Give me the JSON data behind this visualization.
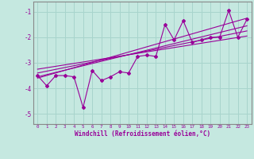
{
  "background_color": "#c5e8e0",
  "grid_color": "#a8d4cc",
  "line_color": "#990099",
  "xlabel": "Windchill (Refroidissement éolien,°C)",
  "xlim": [
    -0.5,
    23.5
  ],
  "ylim": [
    -5.4,
    -0.6
  ],
  "yticks": [
    -5,
    -4,
    -3,
    -2,
    -1
  ],
  "xticks": [
    0,
    1,
    2,
    3,
    4,
    5,
    6,
    7,
    8,
    9,
    10,
    11,
    12,
    13,
    14,
    15,
    16,
    17,
    18,
    19,
    20,
    21,
    22,
    23
  ],
  "main_series_x": [
    0,
    1,
    2,
    3,
    4,
    5,
    6,
    7,
    8,
    9,
    10,
    11,
    12,
    13,
    14,
    15,
    16,
    17,
    18,
    19,
    20,
    21,
    22,
    23
  ],
  "main_series_y": [
    -3.5,
    -3.9,
    -3.5,
    -3.5,
    -3.55,
    -4.75,
    -3.3,
    -3.7,
    -3.55,
    -3.35,
    -3.4,
    -2.75,
    -2.7,
    -2.75,
    -1.5,
    -2.1,
    -1.35,
    -2.2,
    -2.1,
    -2.0,
    -2.0,
    -0.95,
    -2.0,
    -1.3
  ],
  "regression_lines": [
    {
      "x": [
        0,
        23
      ],
      "y": [
        -3.55,
        -1.55
      ]
    },
    {
      "x": [
        0,
        23
      ],
      "y": [
        -3.4,
        -1.75
      ]
    },
    {
      "x": [
        0,
        23
      ],
      "y": [
        -3.25,
        -1.95
      ]
    },
    {
      "x": [
        0,
        23
      ],
      "y": [
        -3.6,
        -1.25
      ]
    }
  ]
}
